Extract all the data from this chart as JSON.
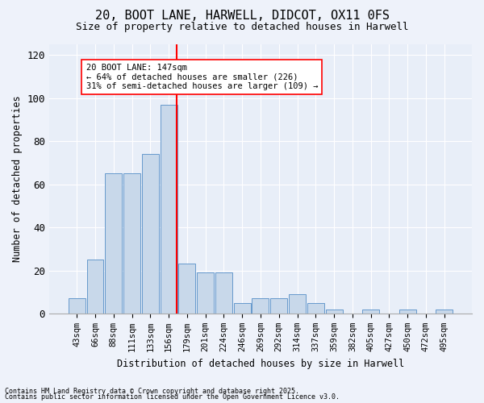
{
  "title_line1": "20, BOOT LANE, HARWELL, DIDCOT, OX11 0FS",
  "title_line2": "Size of property relative to detached houses in Harwell",
  "xlabel": "Distribution of detached houses by size in Harwell",
  "ylabel": "Number of detached properties",
  "bar_color": "#c8d8ea",
  "bar_edge_color": "#6699cc",
  "categories": [
    "43sqm",
    "66sqm",
    "88sqm",
    "111sqm",
    "133sqm",
    "156sqm",
    "179sqm",
    "201sqm",
    "224sqm",
    "246sqm",
    "269sqm",
    "292sqm",
    "314sqm",
    "337sqm",
    "359sqm",
    "382sqm",
    "405sqm",
    "427sqm",
    "450sqm",
    "472sqm",
    "495sqm"
  ],
  "bar_heights": [
    7,
    25,
    65,
    65,
    74,
    97,
    23,
    19,
    19,
    5,
    7,
    7,
    9,
    5,
    2,
    0,
    2,
    0,
    2,
    0,
    2
  ],
  "red_line_x": 5.45,
  "annotation_text": "20 BOOT LANE: 147sqm\n← 64% of detached houses are smaller (226)\n31% of semi-detached houses are larger (109) →",
  "ylim": [
    0,
    125
  ],
  "yticks": [
    0,
    20,
    40,
    60,
    80,
    100,
    120
  ],
  "background_color": "#e8eef8",
  "fig_background_color": "#eef2fa",
  "grid_color": "#ffffff",
  "footer_line1": "Contains HM Land Registry data © Crown copyright and database right 2025.",
  "footer_line2": "Contains public sector information licensed under the Open Government Licence v3.0."
}
